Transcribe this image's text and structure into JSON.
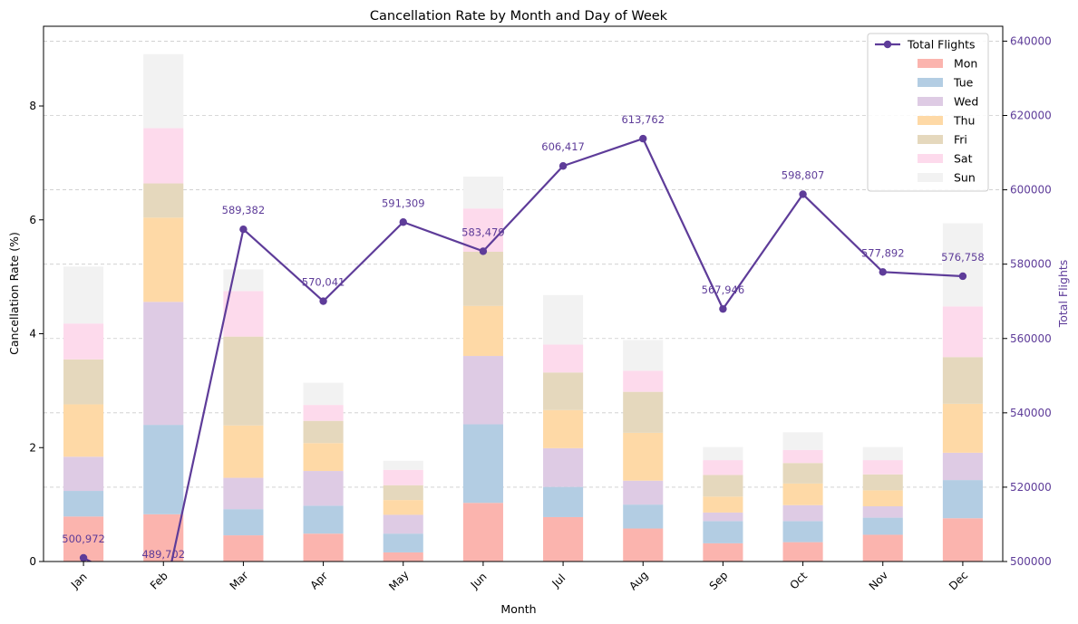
{
  "chart_data": {
    "type": "bar",
    "title": "Cancellation Rate by Month and Day of Week",
    "xlabel": "Month",
    "ylabel": "Cancellation Rate (%)",
    "y2label": "Total Flights",
    "ylim": [
      0,
      9.4
    ],
    "y2lim": [
      500000,
      644000
    ],
    "yticks": [
      0,
      2,
      4,
      6,
      8
    ],
    "y2ticks": [
      500000,
      520000,
      540000,
      560000,
      580000,
      600000,
      620000,
      640000
    ],
    "grid": true,
    "legend_position": "top-right",
    "categories": [
      "Jan",
      "Feb",
      "Mar",
      "Apr",
      "May",
      "Jun",
      "Jul",
      "Aug",
      "Sep",
      "Oct",
      "Nov",
      "Dec"
    ],
    "series": [
      {
        "name": "Mon",
        "color": "#fbb4ae",
        "values": [
          0.79,
          0.83,
          0.46,
          0.49,
          0.16,
          1.03,
          0.78,
          0.58,
          0.32,
          0.34,
          0.47,
          0.76
        ]
      },
      {
        "name": "Tue",
        "color": "#b3cde3",
        "values": [
          0.45,
          1.57,
          0.46,
          0.49,
          0.33,
          1.38,
          0.53,
          0.42,
          0.39,
          0.37,
          0.3,
          0.67
        ]
      },
      {
        "name": "Wed",
        "color": "#decbe4",
        "values": [
          0.6,
          2.16,
          0.55,
          0.61,
          0.33,
          1.2,
          0.68,
          0.42,
          0.15,
          0.28,
          0.2,
          0.48
        ]
      },
      {
        "name": "Thu",
        "color": "#fed9a6",
        "values": [
          0.92,
          1.48,
          0.92,
          0.49,
          0.26,
          0.88,
          0.67,
          0.84,
          0.28,
          0.38,
          0.28,
          0.86
        ]
      },
      {
        "name": "Fri",
        "color": "#e5d8bd",
        "values": [
          0.79,
          0.6,
          1.56,
          0.39,
          0.26,
          0.95,
          0.66,
          0.72,
          0.38,
          0.36,
          0.28,
          0.82
        ]
      },
      {
        "name": "Sat",
        "color": "#fddaec",
        "values": [
          0.63,
          0.97,
          0.8,
          0.28,
          0.27,
          0.76,
          0.49,
          0.37,
          0.26,
          0.23,
          0.25,
          0.89
        ]
      },
      {
        "name": "Sun",
        "color": "#f2f2f2",
        "values": [
          1.0,
          1.3,
          0.38,
          0.39,
          0.16,
          0.56,
          0.87,
          0.54,
          0.23,
          0.31,
          0.23,
          1.46
        ]
      }
    ],
    "line": {
      "name": "Total Flights",
      "color": "#5e3c99",
      "values": [
        500972,
        489702,
        589382,
        570041,
        591309,
        583479,
        606417,
        613762,
        567946,
        598807,
        577892,
        576758
      ],
      "labels": [
        "500,972",
        "489,702",
        "589,382",
        "570,041",
        "591,309",
        "583,479",
        "606,417",
        "613,762",
        "567,946",
        "598,807",
        "577,892",
        "576,758"
      ]
    }
  }
}
